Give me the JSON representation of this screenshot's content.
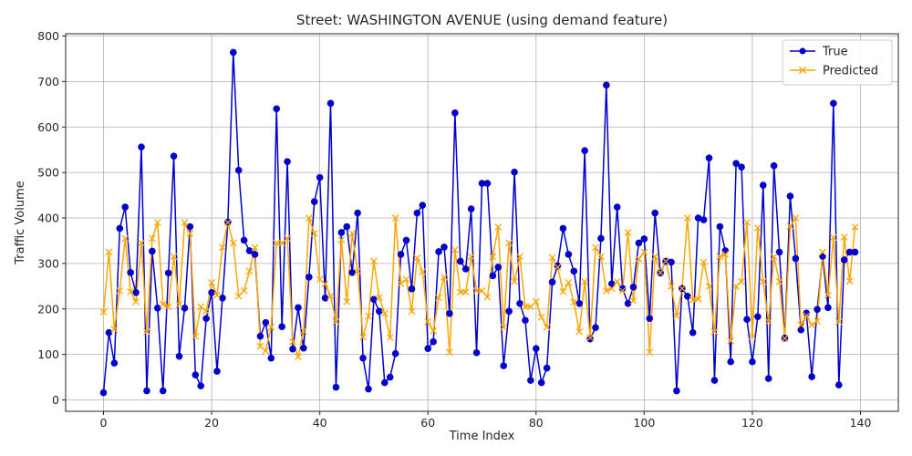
{
  "chart_data": {
    "type": "line",
    "title": "Street: WASHINGTON AVENUE (using demand feature)",
    "xlabel": "Time Index",
    "ylabel": "Traffic Volume",
    "xlim": [
      -7,
      147
    ],
    "ylim": [
      -25,
      805
    ],
    "xticks": [
      0,
      20,
      40,
      60,
      80,
      100,
      120,
      140
    ],
    "yticks": [
      0,
      100,
      200,
      300,
      400,
      500,
      600,
      700,
      800
    ],
    "grid": true,
    "legend_position": "upper right",
    "series": [
      {
        "name": "True",
        "color": "#0000cc",
        "marker": "circle",
        "values": [
          16,
          148,
          81,
          377,
          424,
          280,
          236,
          556,
          20,
          327,
          202,
          20,
          279,
          536,
          96,
          202,
          381,
          55,
          31,
          179,
          236,
          63,
          224,
          391,
          764,
          505,
          351,
          328,
          320,
          140,
          170,
          92,
          640,
          161,
          524,
          112,
          203,
          114,
          270,
          436,
          489,
          224,
          652,
          28,
          368,
          381,
          280,
          411,
          92,
          24,
          221,
          195,
          38,
          50,
          102,
          320,
          351,
          244,
          411,
          428,
          113,
          128,
          326,
          336,
          190,
          631,
          305,
          288,
          420,
          104,
          476,
          476,
          273,
          292,
          75,
          195,
          501,
          212,
          175,
          43,
          113,
          38,
          70,
          259,
          295,
          377,
          320,
          283,
          212,
          548,
          134,
          159,
          355,
          692,
          255,
          424,
          245,
          212,
          248,
          345,
          354,
          179,
          411,
          279,
          305,
          303,
          20,
          245,
          228,
          148,
          400,
          396,
          532,
          43,
          381,
          328,
          84,
          520,
          512,
          177,
          84,
          183,
          472,
          47,
          515,
          325,
          136,
          448,
          311,
          154,
          191,
          51,
          199,
          316,
          203,
          652,
          33,
          308,
          325,
          325
        ]
      },
      {
        "name": "Predicted",
        "color": "#ffa500",
        "marker": "x",
        "values": [
          193,
          325,
          155,
          240,
          355,
          238,
          216,
          345,
          150,
          355,
          390,
          210,
          205,
          315,
          210,
          390,
          366,
          140,
          205,
          195,
          258,
          230,
          335,
          390,
          345,
          228,
          240,
          283,
          335,
          118,
          108,
          160,
          345,
          345,
          355,
          128,
          95,
          152,
          400,
          366,
          265,
          255,
          228,
          172,
          352,
          216,
          366,
          283,
          138,
          184,
          305,
          225,
          190,
          137,
          400,
          256,
          265,
          195,
          312,
          282,
          172,
          152,
          225,
          270,
          105,
          330,
          237,
          237,
          315,
          240,
          240,
          226,
          315,
          380,
          160,
          345,
          260,
          315,
          205,
          205,
          216,
          182,
          160,
          313,
          292,
          238,
          258,
          215,
          150,
          260,
          137,
          335,
          315,
          240,
          245,
          260,
          240,
          368,
          218,
          310,
          325,
          105,
          315,
          280,
          305,
          250,
          185,
          245,
          400,
          220,
          222,
          303,
          250,
          150,
          315,
          320,
          130,
          250,
          260,
          390,
          140,
          378,
          260,
          172,
          315,
          260,
          135,
          382,
          400,
          165,
          185,
          165,
          173,
          325,
          230,
          357,
          172,
          358,
          261,
          380
        ]
      }
    ]
  }
}
